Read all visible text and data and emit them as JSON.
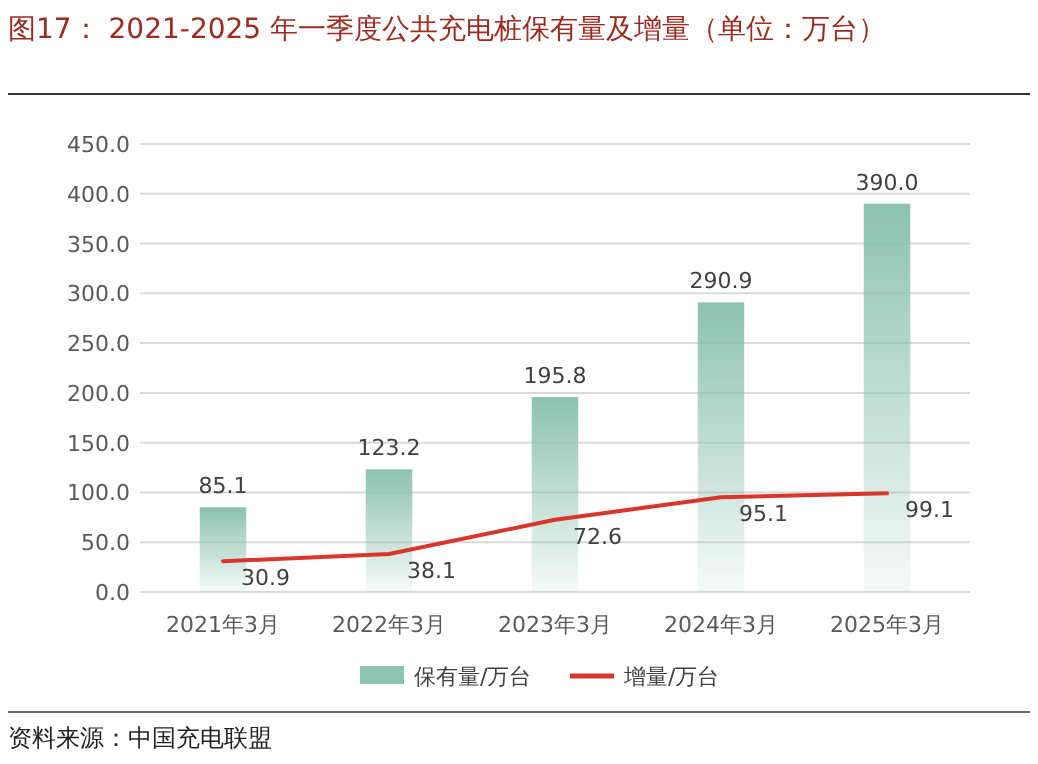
{
  "chart_data": {
    "type": "bar",
    "title": "图17：  2021-2025 年一季度公共充电桩保有量及增量（单位：万台）",
    "categories": [
      "2021年3月",
      "2022年3月",
      "2023年3月",
      "2024年3月",
      "2025年3月"
    ],
    "series": [
      {
        "name": "保有量/万台",
        "color": "#8cc2b0",
        "values": [
          85.1,
          123.2,
          195.8,
          290.9,
          390
        ],
        "value_labels": [
          "85.1",
          "123.2",
          "195.8",
          "290.9",
          "390.0"
        ]
      },
      {
        "name": "增量/万台",
        "type": "line",
        "color": "#d9352b",
        "values": [
          30.9,
          38.1,
          72.6,
          95.1,
          99.1
        ],
        "value_labels": [
          "30.9",
          "38.1",
          "72.6",
          "95.1",
          "99.1"
        ]
      }
    ],
    "ylim": [
      0,
      450
    ],
    "yticks": [
      {
        "value": 0,
        "label": "0.0"
      },
      {
        "value": 50,
        "label": "50.0"
      },
      {
        "value": 100,
        "label": "100.0"
      },
      {
        "value": 150,
        "label": "150.0"
      },
      {
        "value": 200,
        "label": "200.0"
      },
      {
        "value": 250,
        "label": "250.0"
      },
      {
        "value": 300,
        "label": "300.0"
      },
      {
        "value": 350,
        "label": "350.0"
      },
      {
        "value": 400,
        "label": "400.0"
      },
      {
        "value": 450,
        "label": "450.0"
      }
    ],
    "grid": "y",
    "legend": "bottom",
    "marker": "none",
    "line_style": "solid",
    "annotations": [
      "资料来源：中国充电联盟"
    ]
  }
}
